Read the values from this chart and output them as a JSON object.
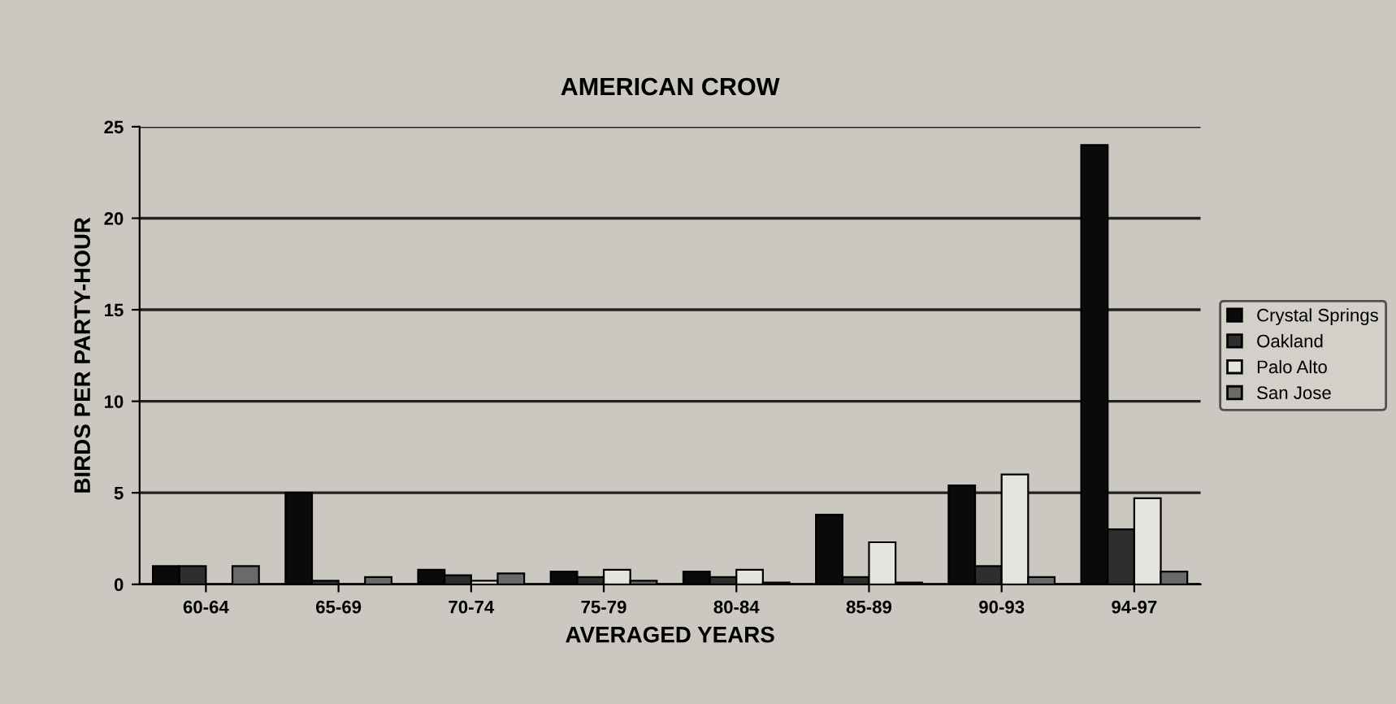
{
  "chart_data": {
    "type": "bar",
    "title": "AMERICAN CROW",
    "xlabel": "AVERAGED YEARS",
    "ylabel": "BIRDS PER PARTY-HOUR",
    "categories": [
      "60-64",
      "65-69",
      "70-74",
      "75-79",
      "80-84",
      "85-89",
      "90-93",
      "94-97"
    ],
    "series": [
      {
        "name": "Crystal Springs",
        "color": "#0a0a0a",
        "values": [
          1.0,
          5.0,
          0.8,
          0.7,
          0.7,
          3.8,
          5.4,
          24.0
        ]
      },
      {
        "name": "Oakland",
        "color": "#2e2e2e",
        "values": [
          1.0,
          0.2,
          0.5,
          0.4,
          0.4,
          0.4,
          1.0,
          3.0
        ]
      },
      {
        "name": "Palo Alto",
        "color": "#e6e4de",
        "values": [
          0,
          0,
          0.2,
          0.8,
          0.8,
          2.3,
          6.0,
          4.7
        ]
      },
      {
        "name": "San Jose",
        "color": "#6a6a6a",
        "values": [
          1.0,
          0.4,
          0.6,
          0.2,
          0.1,
          0.1,
          0.4,
          0.7
        ]
      }
    ],
    "ylim": [
      0,
      25
    ],
    "yticks": [
      0,
      5,
      10,
      15,
      20,
      25
    ],
    "grid": "y",
    "legend": "right"
  }
}
